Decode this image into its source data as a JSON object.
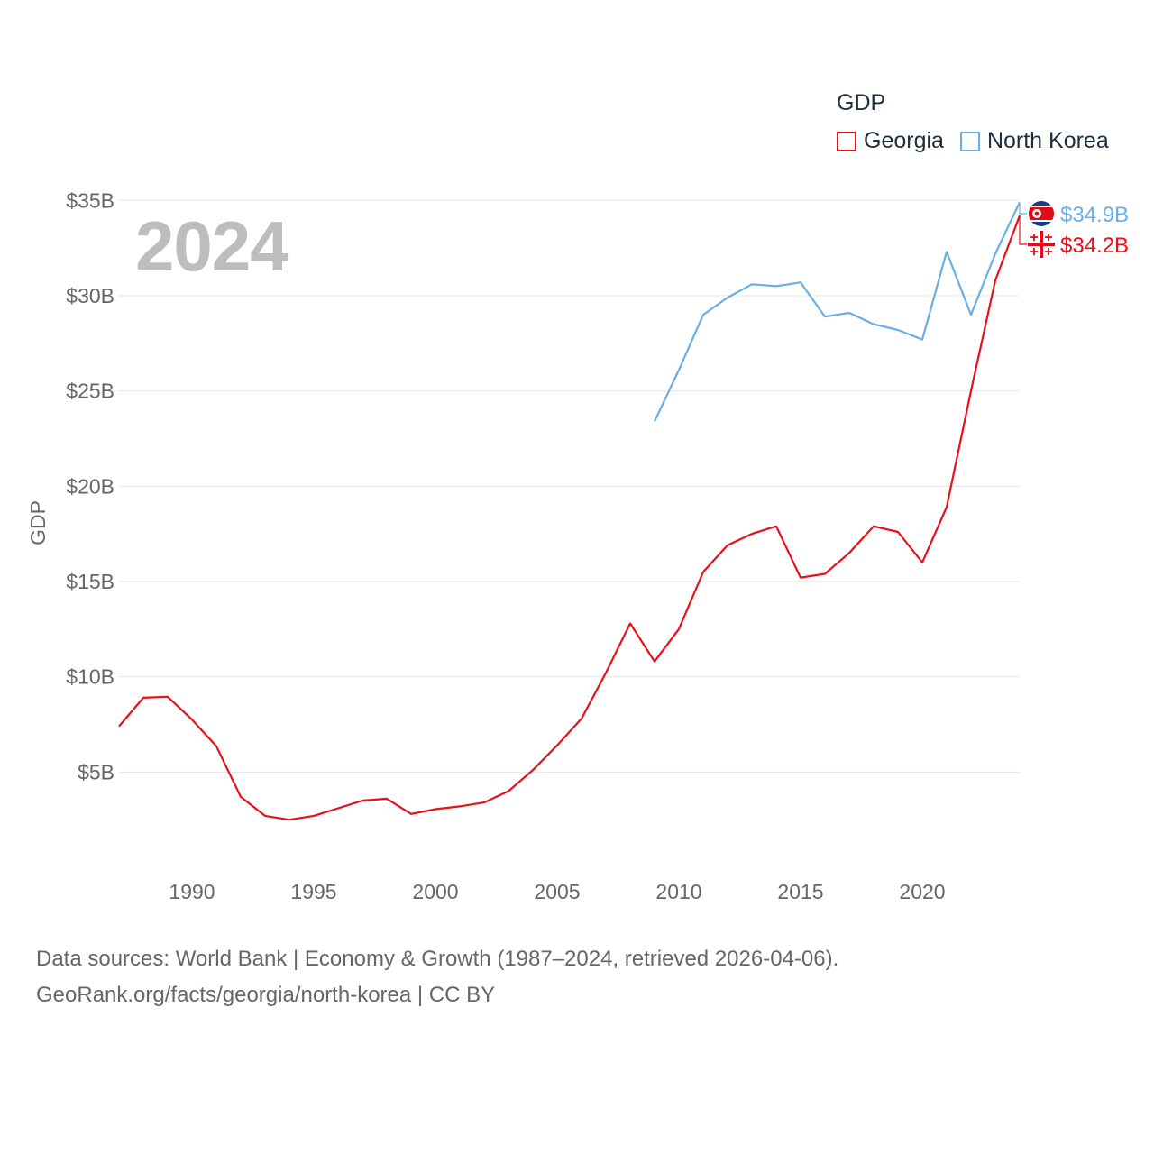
{
  "footer": {
    "line1": "Data sources: World Bank | Economy & Growth (1987–2024, retrieved 2026-04-06).",
    "line2": "GeoRank.org/facts/georgia/north-korea | CC BY"
  },
  "chart_data": {
    "type": "line",
    "year_label": "2024",
    "ylabel": "GDP",
    "xlabel": "",
    "legend_title": "GDP",
    "legend_position": "top-right",
    "xlim": [
      1987,
      2024
    ],
    "ylim": [
      0,
      37
    ],
    "grid": true,
    "x_ticks": [
      1990,
      1995,
      2000,
      2005,
      2010,
      2015,
      2020
    ],
    "y_ticks": [
      {
        "value": 5,
        "label": "$5B"
      },
      {
        "value": 10,
        "label": "$10B"
      },
      {
        "value": 15,
        "label": "$15B"
      },
      {
        "value": 20,
        "label": "$20B"
      },
      {
        "value": 25,
        "label": "$25B"
      },
      {
        "value": 30,
        "label": "$30B"
      },
      {
        "value": 35,
        "label": "$35B"
      }
    ],
    "series": [
      {
        "name": "Georgia",
        "color": "#e8101a",
        "icon": "georgia-flag-icon",
        "end_label": "$34.2B",
        "x": [
          1987,
          1988,
          1989,
          1990,
          1991,
          1992,
          1993,
          1994,
          1995,
          1996,
          1997,
          1998,
          1999,
          2000,
          2001,
          2002,
          2003,
          2004,
          2005,
          2006,
          2007,
          2008,
          2009,
          2010,
          2011,
          2012,
          2013,
          2014,
          2015,
          2016,
          2017,
          2018,
          2019,
          2020,
          2021,
          2022,
          2023,
          2024
        ],
        "values": [
          7.4,
          8.9,
          8.95,
          7.75,
          6.35,
          3.7,
          2.7,
          2.5,
          2.7,
          3.1,
          3.5,
          3.6,
          2.8,
          3.05,
          3.2,
          3.4,
          4.0,
          5.1,
          6.4,
          7.8,
          10.2,
          12.8,
          10.8,
          12.5,
          15.5,
          16.9,
          17.5,
          17.9,
          15.2,
          15.4,
          16.5,
          17.9,
          17.6,
          16.0,
          18.9,
          25.0,
          30.8,
          34.2
        ]
      },
      {
        "name": "North Korea",
        "color": "#6aaee4",
        "icon": "north-korea-flag-icon",
        "end_label": "$34.9B",
        "x": [
          2009,
          2010,
          2011,
          2012,
          2013,
          2014,
          2015,
          2016,
          2017,
          2018,
          2019,
          2020,
          2021,
          2022,
          2023,
          2024
        ],
        "values": [
          23.4,
          26.1,
          29.0,
          29.9,
          30.6,
          30.5,
          30.7,
          28.9,
          29.1,
          28.5,
          28.2,
          27.7,
          32.3,
          29.0,
          32.2,
          34.9
        ]
      }
    ]
  }
}
